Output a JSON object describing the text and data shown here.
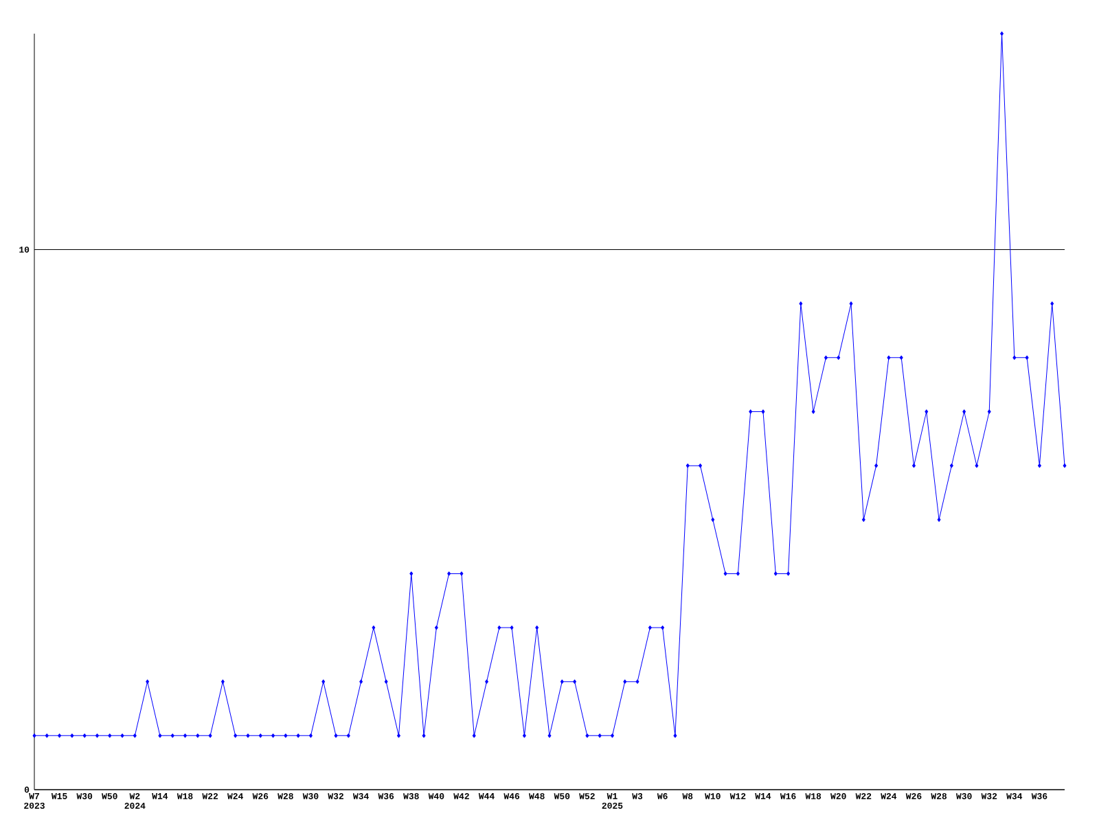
{
  "chart_data": {
    "type": "line",
    "categories": [
      "W7 2023",
      null,
      "W15",
      null,
      "W30",
      null,
      "W50",
      null,
      "W2 2024",
      null,
      "W14",
      null,
      "W18",
      null,
      "W22",
      null,
      "W24",
      null,
      "W26",
      null,
      "W28",
      null,
      "W30",
      null,
      "W32",
      null,
      "W34",
      null,
      "W36",
      null,
      "W38",
      null,
      "W40",
      null,
      "W42",
      null,
      "W44",
      null,
      "W46",
      null,
      "W48",
      null,
      "W50",
      null,
      "W52",
      null,
      "W1 2025",
      null,
      "W3",
      null,
      "W6",
      null,
      "W8",
      null,
      "W10",
      null,
      "W12",
      null,
      "W14",
      null,
      "W16",
      null,
      "W18",
      null,
      "W20",
      null,
      "W22",
      null,
      "W24",
      null,
      "W26",
      null,
      "W28",
      null,
      "W30",
      null,
      "W32",
      null,
      "W34",
      null,
      "W36",
      null,
      null
    ],
    "values": [
      1,
      1,
      1,
      1,
      1,
      1,
      1,
      1,
      1,
      2,
      1,
      1,
      1,
      1,
      1,
      2,
      1,
      1,
      1,
      1,
      1,
      1,
      1,
      2,
      1,
      1,
      2,
      3,
      2,
      1,
      4,
      1,
      3,
      4,
      4,
      1,
      2,
      3,
      3,
      1,
      3,
      1,
      2,
      2,
      1,
      1,
      1,
      2,
      2,
      3,
      3,
      1,
      6,
      6,
      5,
      4,
      4,
      7,
      7,
      4,
      4,
      9,
      7,
      8,
      8,
      9,
      5,
      6,
      8,
      8,
      6,
      7,
      5,
      6,
      7,
      6,
      7,
      14,
      8,
      8,
      6,
      9,
      6
    ],
    "color": "#0000ff",
    "marker": "diamond",
    "ylim": [
      0,
      14
    ],
    "yticks": [
      0,
      10
    ],
    "grid": "y"
  }
}
